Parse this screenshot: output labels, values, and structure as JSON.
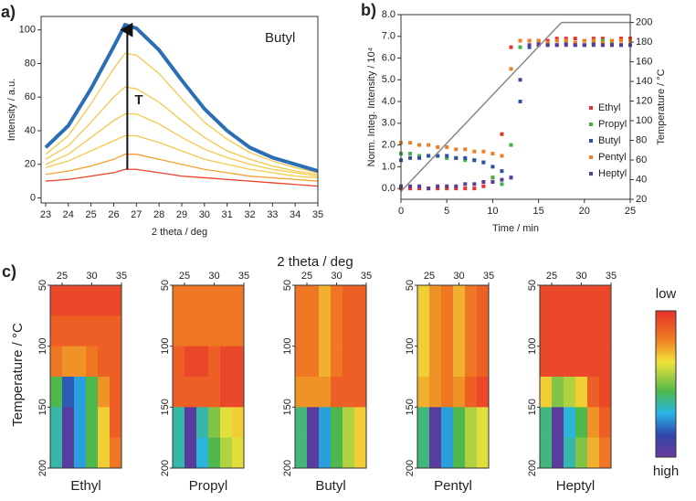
{
  "chart_data": [
    {
      "type": "line",
      "panel": "a)",
      "xlabel": "2 theta / deg",
      "ylabel": "Intensity / a.u.",
      "annotation": "Butyl",
      "arrow_label": "T",
      "x": [
        23,
        24,
        25,
        26,
        26.5,
        27,
        28,
        29,
        30,
        31,
        32,
        33,
        34,
        35
      ],
      "xlim": [
        22.8,
        35
      ],
      "xticks": [
        23,
        24,
        25,
        26,
        27,
        28,
        29,
        30,
        31,
        32,
        33,
        34,
        35
      ],
      "ylim": [
        -3,
        108
      ],
      "yticks": [
        0,
        20,
        40,
        60,
        80,
        100
      ],
      "grid": false,
      "series": [
        {
          "color": "#e8402a",
          "values": [
            10,
            11,
            13,
            15,
            17,
            17,
            15,
            13,
            12,
            11,
            10,
            9,
            8,
            7
          ]
        },
        {
          "color": "#f5a030",
          "values": [
            14,
            16,
            19,
            23,
            26,
            26,
            23,
            20,
            17,
            15,
            13,
            12,
            11,
            10
          ]
        },
        {
          "color": "#f2c94c",
          "values": [
            18,
            22,
            28,
            34,
            37,
            37,
            33,
            28,
            23,
            20,
            17,
            15,
            13,
            12
          ]
        },
        {
          "color": "#f2c94c",
          "values": [
            20,
            26,
            36,
            46,
            50,
            50,
            44,
            36,
            29,
            24,
            20,
            17,
            15,
            13
          ]
        },
        {
          "color": "#f2c94c",
          "values": [
            23,
            31,
            45,
            60,
            66,
            65,
            57,
            46,
            36,
            28,
            23,
            19,
            16,
            14
          ]
        },
        {
          "color": "#f2c94c",
          "values": [
            26,
            37,
            56,
            77,
            86,
            85,
            74,
            59,
            45,
            35,
            27,
            22,
            18,
            15
          ]
        },
        {
          "color": "#2a6fb5",
          "values": [
            30,
            43,
            65,
            90,
            103,
            101,
            88,
            70,
            53,
            40,
            30,
            24,
            20,
            16
          ]
        }
      ]
    },
    {
      "type": "scatter",
      "panel": "b)",
      "xlabel": "Time / min",
      "ylabel": "Norm. Integ. Intensity / 10⁴",
      "y2label": "Temperature / °C",
      "legend": "right",
      "x": [
        0,
        1,
        2,
        3,
        4,
        5,
        6,
        7,
        8,
        9,
        10,
        11,
        12,
        13,
        14,
        15,
        16,
        17,
        18,
        19,
        20,
        21,
        22,
        23,
        24,
        25
      ],
      "xlim": [
        0,
        25
      ],
      "xticks": [
        0,
        5,
        10,
        15,
        20,
        25
      ],
      "ylim": [
        -0.5,
        8
      ],
      "yticks": [
        {
          "value": 0,
          "label": "0.0"
        },
        {
          "value": 1,
          "label": "1.0"
        },
        {
          "value": 2,
          "label": "2.0"
        },
        {
          "value": 3,
          "label": "3.0"
        },
        {
          "value": 4,
          "label": "4.0"
        },
        {
          "value": 5,
          "label": "5.0"
        },
        {
          "value": 6,
          "label": "6.0"
        },
        {
          "value": 7,
          "label": "7.0"
        },
        {
          "value": 8,
          "label": "8.0"
        }
      ],
      "y2lim": [
        20,
        208
      ],
      "y2ticks": [
        20,
        40,
        60,
        80,
        100,
        120,
        140,
        160,
        180,
        200
      ],
      "series": [
        {
          "name": "Ethyl",
          "color": "#e8302a",
          "values": [
            0.0,
            0.0,
            0.0,
            0.0,
            0.0,
            0.0,
            0.0,
            0.0,
            0.0,
            0.1,
            0.5,
            2.5,
            6.5,
            6.8,
            6.8,
            6.8,
            6.8,
            6.9,
            6.9,
            6.9,
            6.8,
            6.9,
            6.9,
            6.8,
            6.9,
            6.9
          ]
        },
        {
          "name": "Propyl",
          "color": "#3cb54a",
          "values": [
            1.6,
            1.6,
            1.5,
            1.5,
            1.5,
            1.4,
            1.4,
            1.3,
            1.3,
            1.2,
            0.5,
            0.2,
            2.0,
            6.5,
            6.8,
            6.8,
            6.7,
            6.8,
            6.8,
            6.7,
            6.8,
            6.7,
            6.8,
            6.7,
            6.8,
            6.8
          ]
        },
        {
          "name": "Butyl",
          "color": "#2e4fa8",
          "values": [
            1.3,
            1.4,
            1.4,
            1.5,
            1.5,
            1.5,
            1.4,
            1.4,
            1.3,
            1.2,
            1.0,
            0.8,
            0.5,
            4.0,
            6.5,
            6.7,
            6.6,
            6.6,
            6.7,
            6.6,
            6.6,
            6.7,
            6.6,
            6.6,
            6.6,
            6.6
          ]
        },
        {
          "name": "Pentyl",
          "color": "#f07f22",
          "values": [
            2.1,
            2.1,
            2.0,
            2.0,
            1.9,
            1.9,
            1.8,
            1.8,
            1.7,
            1.7,
            1.6,
            1.5,
            5.5,
            6.8,
            6.8,
            6.8,
            6.7,
            6.8,
            6.8,
            6.7,
            6.8,
            6.8,
            6.7,
            6.8,
            6.8,
            6.8
          ]
        },
        {
          "name": "Heptyl",
          "color": "#5b3a9a",
          "values": [
            0.1,
            0.1,
            0.1,
            0.0,
            0.1,
            0.1,
            0.1,
            0.2,
            0.2,
            0.3,
            0.3,
            0.4,
            0.5,
            5.0,
            6.6,
            6.6,
            6.6,
            6.6,
            6.6,
            6.6,
            6.6,
            6.6,
            6.6,
            6.6,
            6.6,
            6.6
          ]
        },
        {
          "axis": "y2",
          "color": "#888888",
          "x": [
            0,
            17.5,
            25
          ],
          "values": [
            28,
            200,
            200
          ]
        }
      ]
    },
    {
      "type": "heatmap",
      "panel": "c)",
      "xlabel": "2 theta / deg",
      "ylabel": "Temperature / °C",
      "xlim": [
        23,
        35
      ],
      "xticks": [
        25,
        30,
        35
      ],
      "ylim": [
        50,
        200
      ],
      "yticks": [
        50,
        100,
        150,
        200
      ],
      "xbins": [
        23,
        25,
        27,
        29,
        31,
        33,
        35
      ],
      "ybins": [
        50,
        75,
        100,
        125,
        150,
        175,
        200
      ],
      "colorbar": {
        "low": "low",
        "high": "high"
      },
      "panels": [
        {
          "name": "Ethyl",
          "values": [
            [
              0.05,
              0.05,
              0.05,
              0.05,
              0.05,
              0.05
            ],
            [
              0.1,
              0.1,
              0.1,
              0.1,
              0.1,
              0.1
            ],
            [
              0.15,
              0.2,
              0.2,
              0.15,
              0.1,
              0.1
            ],
            [
              0.5,
              0.8,
              0.7,
              0.5,
              0.2,
              0.1
            ],
            [
              0.6,
              0.95,
              0.7,
              0.5,
              0.3,
              0.1
            ],
            [
              0.6,
              0.95,
              0.7,
              0.5,
              0.3,
              0.15
            ]
          ]
        },
        {
          "name": "Propyl",
          "values": [
            [
              0.15,
              0.15,
              0.15,
              0.15,
              0.15,
              0.15
            ],
            [
              0.15,
              0.15,
              0.15,
              0.15,
              0.15,
              0.15
            ],
            [
              0.1,
              0.05,
              0.05,
              0.1,
              0.05,
              0.05
            ],
            [
              0.1,
              0.1,
              0.1,
              0.1,
              0.05,
              0.05
            ],
            [
              0.6,
              0.95,
              0.6,
              0.45,
              0.35,
              0.3
            ],
            [
              0.6,
              0.95,
              0.65,
              0.5,
              0.4,
              0.35
            ]
          ]
        },
        {
          "name": "Butyl",
          "values": [
            [
              0.15,
              0.15,
              0.25,
              0.15,
              0.1,
              0.1
            ],
            [
              0.15,
              0.15,
              0.25,
              0.15,
              0.1,
              0.1
            ],
            [
              0.15,
              0.15,
              0.25,
              0.15,
              0.1,
              0.1
            ],
            [
              0.2,
              0.2,
              0.2,
              0.1,
              0.1,
              0.1
            ],
            [
              0.55,
              0.95,
              0.7,
              0.5,
              0.4,
              0.3
            ],
            [
              0.55,
              0.95,
              0.7,
              0.5,
              0.4,
              0.3
            ]
          ]
        },
        {
          "name": "Pentyl",
          "values": [
            [
              0.3,
              0.2,
              0.15,
              0.25,
              0.15,
              0.1
            ],
            [
              0.3,
              0.2,
              0.15,
              0.25,
              0.15,
              0.1
            ],
            [
              0.3,
              0.2,
              0.15,
              0.25,
              0.15,
              0.1
            ],
            [
              0.25,
              0.2,
              0.15,
              0.2,
              0.1,
              0.05
            ],
            [
              0.55,
              0.95,
              0.7,
              0.5,
              0.4,
              0.35
            ],
            [
              0.55,
              0.95,
              0.7,
              0.5,
              0.4,
              0.35
            ]
          ]
        },
        {
          "name": "Heptyl",
          "values": [
            [
              0.05,
              0.05,
              0.05,
              0.05,
              0.05,
              0.05
            ],
            [
              0.05,
              0.05,
              0.05,
              0.05,
              0.05,
              0.05
            ],
            [
              0.05,
              0.05,
              0.05,
              0.05,
              0.05,
              0.05
            ],
            [
              0.3,
              0.45,
              0.4,
              0.3,
              0.1,
              0.05
            ],
            [
              0.55,
              0.95,
              0.65,
              0.5,
              0.2,
              0.1
            ],
            [
              0.55,
              0.95,
              0.6,
              0.45,
              0.25,
              0.15
            ]
          ]
        }
      ]
    }
  ]
}
